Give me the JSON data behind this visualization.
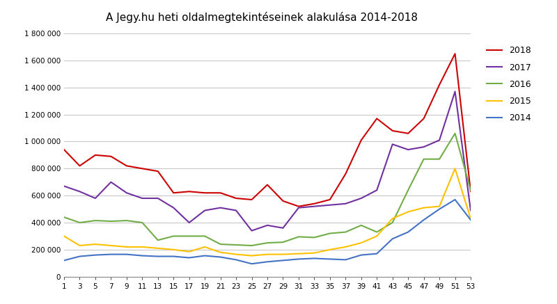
{
  "title": "A Jegy.hu heti oldalmegtekintéseinek alakulása 2014-2018",
  "weeks": [
    1,
    3,
    5,
    7,
    9,
    11,
    13,
    15,
    17,
    19,
    21,
    23,
    25,
    27,
    29,
    31,
    33,
    35,
    37,
    39,
    41,
    43,
    45,
    47,
    49,
    51,
    53
  ],
  "series": {
    "2018": [
      940000,
      820000,
      900000,
      890000,
      820000,
      800000,
      780000,
      620000,
      630000,
      620000,
      620000,
      580000,
      570000,
      680000,
      560000,
      520000,
      540000,
      570000,
      760000,
      1010000,
      1170000,
      1080000,
      1060000,
      1170000,
      1420000,
      1650000,
      630000
    ],
    "2017": [
      670000,
      630000,
      580000,
      700000,
      620000,
      580000,
      580000,
      510000,
      400000,
      490000,
      510000,
      490000,
      340000,
      380000,
      360000,
      510000,
      520000,
      530000,
      540000,
      580000,
      640000,
      980000,
      940000,
      960000,
      1010000,
      1370000,
      490000
    ],
    "2016": [
      440000,
      400000,
      415000,
      410000,
      415000,
      400000,
      270000,
      300000,
      300000,
      300000,
      240000,
      235000,
      230000,
      250000,
      255000,
      295000,
      290000,
      320000,
      330000,
      380000,
      330000,
      400000,
      640000,
      870000,
      870000,
      1060000,
      640000
    ],
    "2015": [
      300000,
      230000,
      240000,
      230000,
      220000,
      220000,
      210000,
      200000,
      185000,
      220000,
      180000,
      165000,
      155000,
      165000,
      165000,
      170000,
      175000,
      200000,
      220000,
      250000,
      300000,
      430000,
      480000,
      510000,
      520000,
      800000,
      430000
    ],
    "2014": [
      120000,
      150000,
      160000,
      165000,
      165000,
      155000,
      150000,
      150000,
      140000,
      155000,
      145000,
      125000,
      95000,
      110000,
      120000,
      130000,
      135000,
      130000,
      125000,
      160000,
      170000,
      280000,
      330000,
      420000,
      500000,
      570000,
      420000
    ]
  },
  "colors": {
    "2018": "#cc0000",
    "2017": "#7030a0",
    "2016": "#70ad47",
    "2015": "#ffc000",
    "2014": "#4472c4"
  },
  "ylim": [
    0,
    1800000
  ],
  "yticks": [
    0,
    200000,
    400000,
    600000,
    800000,
    1000000,
    1200000,
    1400000,
    1600000,
    1800000
  ],
  "ytick_labels": [
    "0",
    "200 000",
    "400 000",
    "600 000",
    "800 000",
    "1 000 000",
    "1 200 000",
    "1 400 000",
    "1 600 000",
    "1 800 000"
  ],
  "xticks": [
    1,
    3,
    5,
    7,
    9,
    11,
    13,
    15,
    17,
    19,
    21,
    23,
    25,
    27,
    29,
    31,
    33,
    35,
    37,
    39,
    41,
    43,
    45,
    47,
    49,
    51,
    53
  ],
  "legend_order": [
    "2018",
    "2017",
    "2016",
    "2015",
    "2014"
  ],
  "background_color": "#ffffff",
  "grid_color": "#c8c8c8"
}
